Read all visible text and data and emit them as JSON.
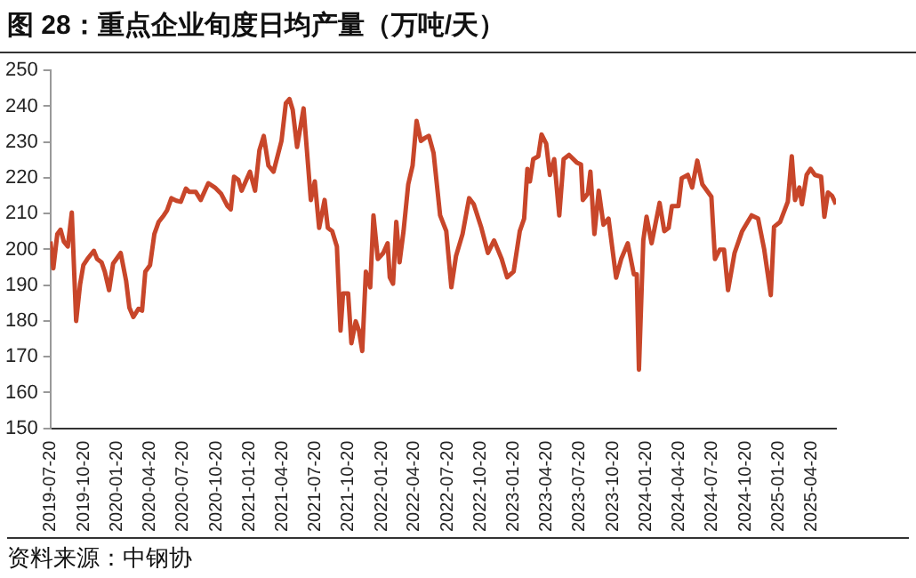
{
  "chart_data": {
    "type": "line",
    "title": "图 28：重点企业旬度日均产量（万吨/天）",
    "annotations": [
      "资料来源：中钢协"
    ],
    "x": [
      "2019-07-20",
      "2019-07-28",
      "2019-08-08",
      "2019-08-17",
      "2019-08-26",
      "2019-09-06",
      "2019-09-17",
      "2019-09-29",
      "2019-10-10",
      "2019-10-19",
      "2019-10-30",
      "2019-11-17",
      "2019-11-26",
      "2019-12-08",
      "2019-12-17",
      "2019-12-29",
      "2020-01-09",
      "2020-01-30",
      "2020-02-14",
      "2020-02-23",
      "2020-03-05",
      "2020-03-19",
      "2020-03-29",
      "2020-04-07",
      "2020-04-20",
      "2020-05-02",
      "2020-05-14",
      "2020-05-28",
      "2020-06-06",
      "2020-06-18",
      "2020-07-02",
      "2020-07-14",
      "2020-07-28",
      "2020-08-06",
      "2020-08-24",
      "2020-09-07",
      "2020-09-28",
      "2020-10-16",
      "2020-11-02",
      "2020-11-20",
      "2020-11-29",
      "2020-12-08",
      "2020-12-20",
      "2020-12-29",
      "2021-01-21",
      "2021-02-04",
      "2021-02-16",
      "2021-02-28",
      "2021-03-13",
      "2021-03-27",
      "2021-04-18",
      "2021-04-30",
      "2021-05-10",
      "2021-05-19",
      "2021-05-31",
      "2021-06-18",
      "2021-07-08",
      "2021-07-19",
      "2021-07-31",
      "2021-08-15",
      "2021-08-24",
      "2021-09-05",
      "2021-09-18",
      "2021-09-28",
      "2021-10-05",
      "2021-10-19",
      "2021-10-28",
      "2021-11-09",
      "2021-11-18",
      "2021-11-27",
      "2021-12-07",
      "2021-12-19",
      "2021-12-28",
      "2022-01-09",
      "2022-01-24",
      "2022-02-05",
      "2022-02-11",
      "2022-02-20",
      "2022-03-01",
      "2022-03-10",
      "2022-03-21",
      "2022-04-03",
      "2022-04-15",
      "2022-04-26",
      "2022-05-08",
      "2022-05-20",
      "2022-05-30",
      "2022-06-12",
      "2022-06-30",
      "2022-07-17",
      "2022-07-31",
      "2022-08-13",
      "2022-08-31",
      "2022-09-18",
      "2022-10-01",
      "2022-10-22",
      "2022-11-09",
      "2022-11-26",
      "2022-12-17",
      "2023-01-01",
      "2023-01-19",
      "2023-02-05",
      "2023-02-17",
      "2023-02-26",
      "2023-03-05",
      "2023-03-14",
      "2023-03-28",
      "2023-04-06",
      "2023-04-19",
      "2023-04-29",
      "2023-05-11",
      "2023-05-25",
      "2023-06-06",
      "2023-06-21",
      "2023-07-12",
      "2023-07-24",
      "2023-07-29",
      "2023-08-12",
      "2023-08-19",
      "2023-08-30",
      "2023-09-11",
      "2023-09-24",
      "2023-10-08",
      "2023-10-29",
      "2023-11-12",
      "2023-11-30",
      "2023-12-17",
      "2023-12-25",
      "2023-12-31",
      "2024-01-12",
      "2024-01-21",
      "2024-02-04",
      "2024-02-26",
      "2024-03-10",
      "2024-03-22",
      "2024-03-31",
      "2024-04-18",
      "2024-04-27",
      "2024-05-14",
      "2024-05-26",
      "2024-06-09",
      "2024-06-23",
      "2024-07-18",
      "2024-07-28",
      "2024-08-10",
      "2024-08-22",
      "2024-09-02",
      "2024-09-20",
      "2024-10-11",
      "2024-11-06",
      "2024-11-24",
      "2024-12-11",
      "2024-12-29",
      "2025-01-07",
      "2025-01-24",
      "2025-02-14",
      "2025-02-25",
      "2025-03-06",
      "2025-03-18",
      "2025-03-25",
      "2025-04-07",
      "2025-04-18",
      "2025-04-30",
      "2025-05-17",
      "2025-05-26",
      "2025-06-05",
      "2025-06-16",
      "2025-06-27"
    ],
    "series": [
      {
        "color": "#c8462a",
        "values": [
          202.2,
          194.7,
          204.3,
          205.5,
          202.2,
          200.8,
          210.3,
          180,
          190.3,
          195.6,
          197.3,
          199.6,
          197.3,
          196.4,
          193.8,
          188.6,
          196,
          199,
          191.2,
          183.7,
          181.1,
          183.4,
          182.9,
          193.8,
          195.6,
          204.3,
          207.7,
          209.5,
          210.9,
          214.3,
          213.6,
          213.3,
          217,
          216.1,
          216.1,
          213.8,
          218.5,
          217.3,
          215.6,
          212.1,
          211.2,
          220.3,
          219.4,
          216.4,
          221.7,
          216.4,
          227.7,
          231.7,
          223.4,
          221.7,
          230.3,
          240.8,
          242,
          239,
          228.6,
          239.4,
          213.8,
          219,
          206,
          213.8,
          206,
          205.1,
          200.8,
          177.3,
          187.7,
          187.7,
          173.8,
          179.9,
          177.3,
          171.6,
          193.8,
          189.4,
          209.5,
          197.3,
          199,
          201.7,
          192.2,
          190.4,
          207.7,
          196.4,
          205.1,
          218.2,
          223.4,
          235.9,
          230.3,
          231.2,
          231.7,
          226.9,
          209.5,
          205.1,
          189.4,
          198.2,
          204.3,
          214.3,
          212.6,
          206,
          199,
          202.5,
          197.3,
          192.2,
          193.8,
          205.1,
          208.6,
          222.5,
          219,
          225.2,
          226,
          232.1,
          229.5,
          220.8,
          225.2,
          209.5,
          225.2,
          226.4,
          224.3,
          223.7,
          213.8,
          215.6,
          221.7,
          204.3,
          216.4,
          206.9,
          208.6,
          192.1,
          197.3,
          201.7,
          193,
          193,
          166.4,
          202.5,
          209.1,
          201.7,
          213,
          205.1,
          206,
          212.1,
          212.1,
          219.9,
          220.8,
          217.3,
          224.8,
          218.2,
          214.7,
          197.3,
          199.9,
          199.9,
          188.6,
          199,
          205.1,
          209.5,
          208.6,
          199.9,
          187.2,
          206.3,
          207.7,
          213.3,
          226,
          213.8,
          217.3,
          212.6,
          220.8,
          222.5,
          220.8,
          220.3,
          209.1,
          215.9,
          215,
          212.6
        ]
      }
    ],
    "xlim": [
      "2019-07-20",
      "2025-06-27"
    ],
    "xticks": [
      "2019-07-20",
      "2019-10-20",
      "2020-01-20",
      "2020-04-20",
      "2020-07-20",
      "2020-10-20",
      "2021-01-20",
      "2021-04-20",
      "2021-07-20",
      "2021-10-20",
      "2022-01-20",
      "2022-04-20",
      "2022-07-20",
      "2022-10-20",
      "2023-01-20",
      "2023-04-20",
      "2023-07-20",
      "2023-10-20",
      "2024-01-20",
      "2024-04-20",
      "2024-07-20",
      "2024-10-20",
      "2025-01-20",
      "2025-04-20"
    ],
    "ylim": [
      150,
      250
    ],
    "yticks": [
      150,
      160,
      170,
      180,
      190,
      200,
      210,
      220,
      230,
      240,
      250
    ],
    "grid": false,
    "legend": false,
    "marker": "none",
    "line_style": "solid"
  }
}
